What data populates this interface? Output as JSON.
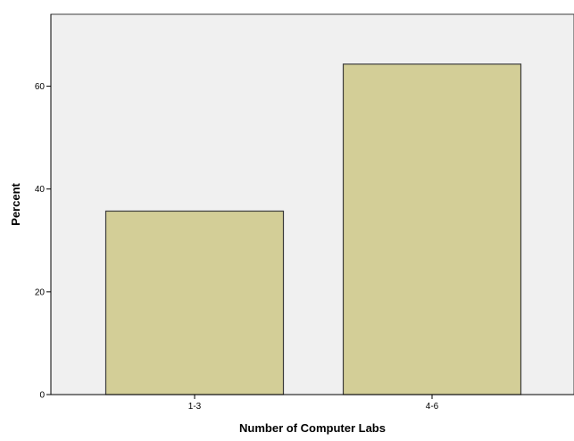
{
  "chart_data": {
    "type": "bar",
    "title": "",
    "xlabel": "Number of Computer Labs",
    "ylabel": "Percent",
    "categories": [
      "1-3",
      "4-6"
    ],
    "values": [
      35.7,
      64.3
    ],
    "ylim": [
      0,
      74
    ],
    "yticks": [
      0,
      20,
      40,
      60
    ],
    "ytick_labels": [
      "0",
      "20",
      "40",
      "60"
    ],
    "grid": false,
    "legend": "none",
    "colors": {
      "plot_background": "#f0f0f0",
      "bar_fill": "#d3ce97",
      "bar_stroke": "#3c3c3c",
      "axis": "#000000"
    }
  }
}
